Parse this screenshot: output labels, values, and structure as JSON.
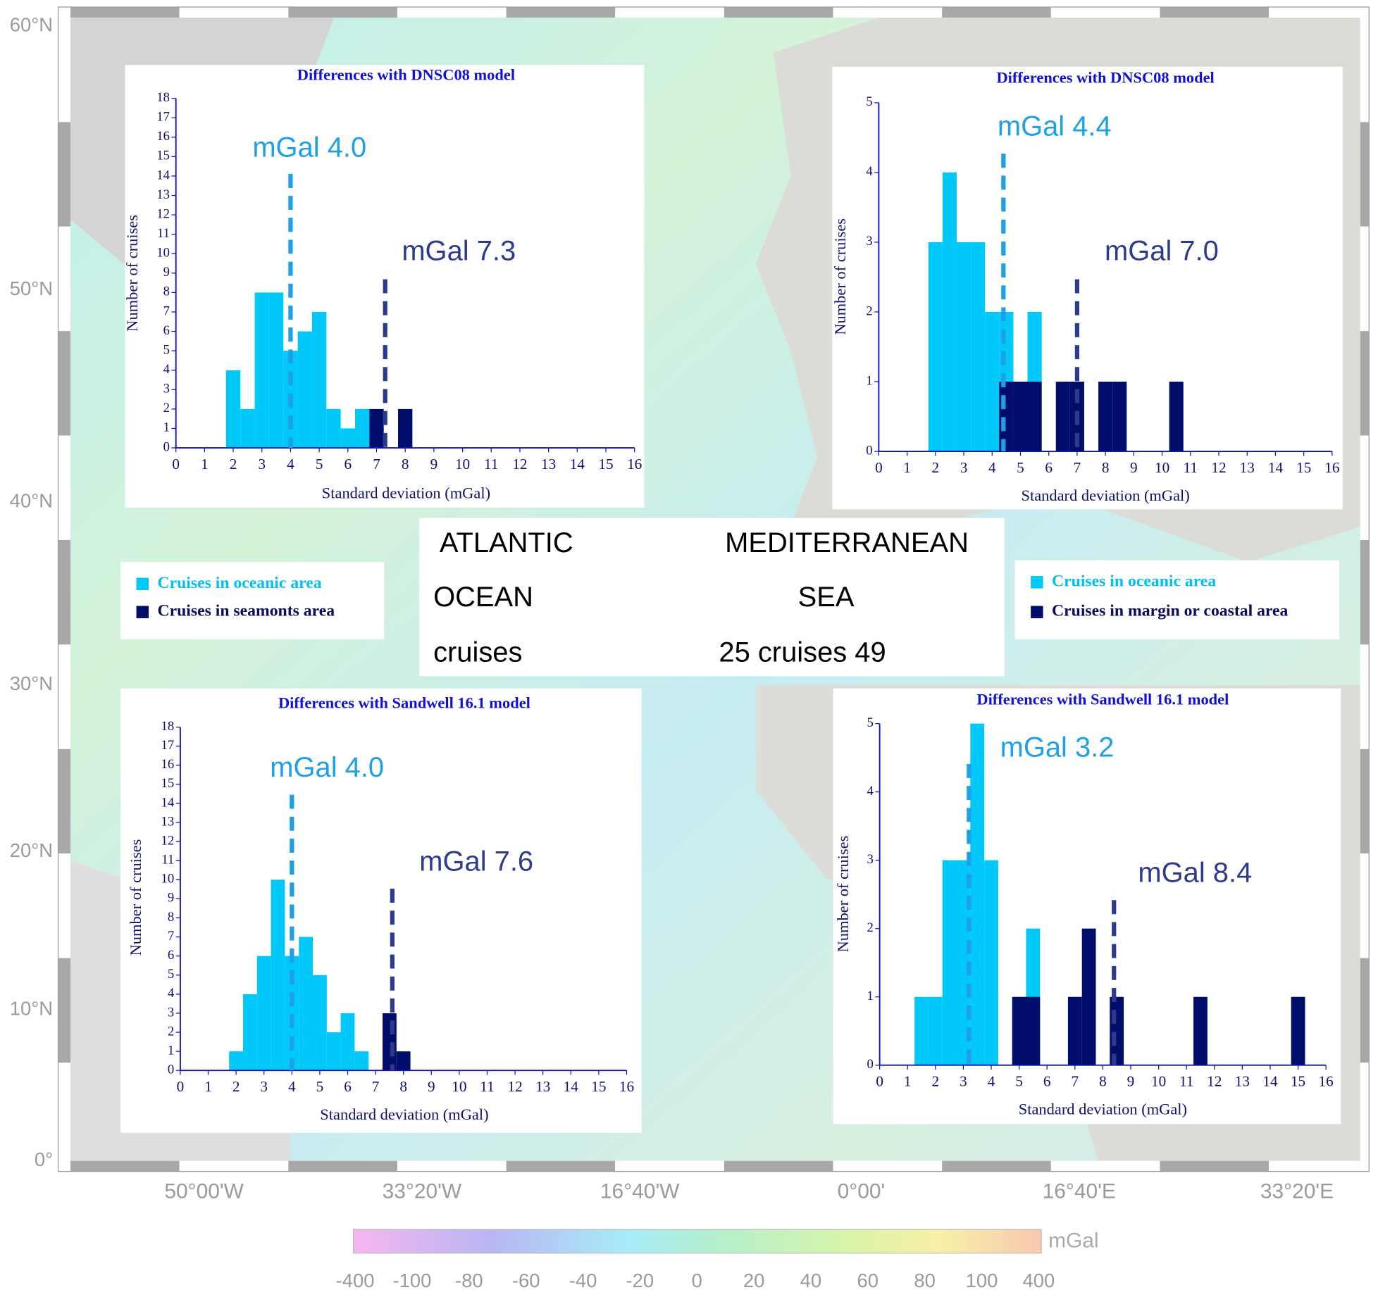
{
  "chart_data": [
    {
      "type": "histogram",
      "title": "Differences with DNSC08 model",
      "xlabel": "Standard deviation (mGal)",
      "ylabel": "Number of cruises",
      "bins": [
        1.75,
        2.25,
        2.75,
        3.25,
        3.75,
        4.25,
        4.75,
        5.25,
        5.75,
        6.25,
        6.75,
        7.25,
        7.75,
        8.25
      ],
      "series": [
        {
          "name": "Cruises in oceanic area",
          "color": "#00c8f8",
          "values": [
            4,
            2,
            8,
            8,
            5,
            6,
            7,
            2,
            1,
            2,
            0,
            0,
            0
          ]
        },
        {
          "name": "Cruises in seamonts area",
          "color": "#000d6b",
          "values": [
            0,
            0,
            0,
            0,
            0,
            0,
            0,
            0,
            0,
            0,
            2,
            0,
            2
          ]
        }
      ],
      "xlim": [
        0,
        16
      ],
      "ylim": [
        0,
        18
      ],
      "xticks": [
        0,
        1,
        2,
        3,
        4,
        5,
        6,
        7,
        8,
        9,
        10,
        11,
        12,
        13,
        14,
        15,
        16
      ],
      "yticks": [
        0,
        1,
        2,
        3,
        4,
        5,
        6,
        7,
        8,
        9,
        10,
        11,
        12,
        13,
        14,
        15,
        16,
        17,
        18
      ],
      "annotations": [
        {
          "value": 4.0,
          "label": "mGal 4.0",
          "color": "#1ea0e6"
        },
        {
          "value": 7.3,
          "label": "mGal 7.3",
          "color": "#2e3a8c"
        }
      ]
    },
    {
      "type": "histogram",
      "title": "Differences with DNSC08 model",
      "xlabel": "Standard deviation (mGal)",
      "ylabel": "Number of cruises",
      "bins": [
        1.75,
        2.25,
        2.75,
        3.25,
        3.75,
        4.25,
        4.75,
        5.25,
        5.75,
        6.25,
        6.75,
        7.25,
        7.75,
        8.25,
        8.75,
        9.25,
        9.75,
        10.25,
        10.75
      ],
      "series": [
        {
          "name": "Cruises in oceanic area",
          "color": "#00c8f8",
          "values": [
            3,
            4,
            3,
            3,
            2,
            2,
            0,
            2,
            0,
            0,
            0,
            0,
            0,
            0,
            0,
            0,
            0,
            0
          ]
        },
        {
          "name": "Cruises in margin or coastal area",
          "color": "#000d6b",
          "values": [
            0,
            0,
            0,
            0,
            0,
            1,
            1,
            1,
            0,
            1,
            1,
            0,
            1,
            1,
            0,
            0,
            0,
            1
          ]
        }
      ],
      "xlim": [
        0,
        16
      ],
      "ylim": [
        0,
        5
      ],
      "xticks": [
        0,
        1,
        2,
        3,
        4,
        5,
        6,
        7,
        8,
        9,
        10,
        11,
        12,
        13,
        14,
        15,
        16
      ],
      "yticks": [
        0,
        1,
        2,
        3,
        4,
        5
      ],
      "annotations": [
        {
          "value": 4.4,
          "label": "mGal 4.4",
          "color": "#1ea0e6"
        },
        {
          "value": 7.0,
          "label": "mGal 7.0",
          "color": "#2e3a8c"
        }
      ]
    },
    {
      "type": "histogram",
      "title": "Differences with Sandwell 16.1 model",
      "xlabel": "Standard deviation (mGal)",
      "ylabel": "Number of cruises",
      "bins": [
        1.75,
        2.25,
        2.75,
        3.25,
        3.75,
        4.25,
        4.75,
        5.25,
        5.75,
        6.25,
        6.75,
        7.25,
        7.75,
        8.25
      ],
      "series": [
        {
          "color": "#00c8f8",
          "values": [
            1,
            4,
            6,
            10,
            6,
            7,
            5,
            2,
            3,
            1,
            0,
            0,
            0
          ]
        },
        {
          "color": "#000d6b",
          "values": [
            0,
            0,
            0,
            0,
            0,
            0,
            0,
            0,
            0,
            0,
            0,
            3,
            1
          ]
        }
      ],
      "xlim": [
        0,
        16
      ],
      "ylim": [
        0,
        18
      ],
      "xticks": [
        0,
        1,
        2,
        3,
        4,
        5,
        6,
        7,
        8,
        9,
        10,
        11,
        12,
        13,
        14,
        15,
        16
      ],
      "yticks": [
        0,
        1,
        2,
        3,
        4,
        5,
        6,
        7,
        8,
        9,
        10,
        11,
        12,
        13,
        14,
        15,
        16,
        17,
        18
      ],
      "annotations": [
        {
          "value": 4.0,
          "label": "mGal 4.0",
          "color": "#1ea0e6"
        },
        {
          "value": 7.6,
          "label": "mGal 7.6",
          "color": "#2e3a8c"
        }
      ]
    },
    {
      "type": "histogram",
      "title": "Differences with Sandwell 16.1 model",
      "xlabel": "Standard deviation (mGal)",
      "ylabel": "Number of cruises",
      "bins": [
        1.25,
        1.75,
        2.25,
        2.75,
        3.25,
        3.75,
        4.25,
        4.75,
        5.25,
        5.75,
        6.25,
        6.75,
        7.25,
        7.75,
        8.25,
        8.75,
        9.25,
        9.75,
        10.25,
        10.75,
        11.25,
        11.75,
        12.25,
        12.75,
        13.25,
        13.75,
        14.25,
        14.75,
        15.25
      ],
      "series": [
        {
          "color": "#00c8f8",
          "values": [
            1,
            1,
            3,
            3,
            5,
            3,
            0,
            0,
            2,
            0,
            0,
            0,
            0,
            0,
            0,
            0,
            0,
            0,
            0,
            0,
            0,
            0,
            0,
            0,
            0,
            0,
            0,
            0
          ]
        },
        {
          "color": "#000d6b",
          "values": [
            0,
            0,
            0,
            0,
            0,
            0,
            0,
            1,
            1,
            0,
            0,
            1,
            2,
            0,
            1,
            0,
            0,
            0,
            0,
            0,
            1,
            0,
            0,
            0,
            0,
            0,
            0,
            1
          ]
        }
      ],
      "xlim": [
        0,
        16
      ],
      "ylim": [
        0,
        5
      ],
      "xticks": [
        0,
        1,
        2,
        3,
        4,
        5,
        6,
        7,
        8,
        9,
        10,
        11,
        12,
        13,
        14,
        15,
        16
      ],
      "yticks": [
        0,
        1,
        2,
        3,
        4,
        5
      ],
      "annotations": [
        {
          "value": 3.2,
          "label": "mGal 3.2",
          "color": "#1ea0e6"
        },
        {
          "value": 8.4,
          "label": "mGal 8.4",
          "color": "#2e3a8c"
        }
      ]
    }
  ],
  "map": {
    "lat_labels": [
      "60°N",
      "50°N",
      "40°N",
      "30°N",
      "20°N",
      "10°N",
      "0°"
    ],
    "lon_labels": [
      "50°00'W",
      "33°20'W",
      "16°40'W",
      "0°00'",
      "16°40'E",
      "33°20'E"
    ]
  },
  "colorbar": {
    "unit": "mGal",
    "ticks": [
      -400,
      -100,
      -80,
      -60,
      -40,
      -20,
      0,
      20,
      40,
      60,
      80,
      100,
      400
    ]
  },
  "center_box": {
    "lines": [
      [
        "ATLANTIC",
        "MEDITERRANEAN"
      ],
      [
        "OCEAN",
        "SEA"
      ],
      [
        "cruises",
        "25 cruises 49"
      ]
    ]
  }
}
